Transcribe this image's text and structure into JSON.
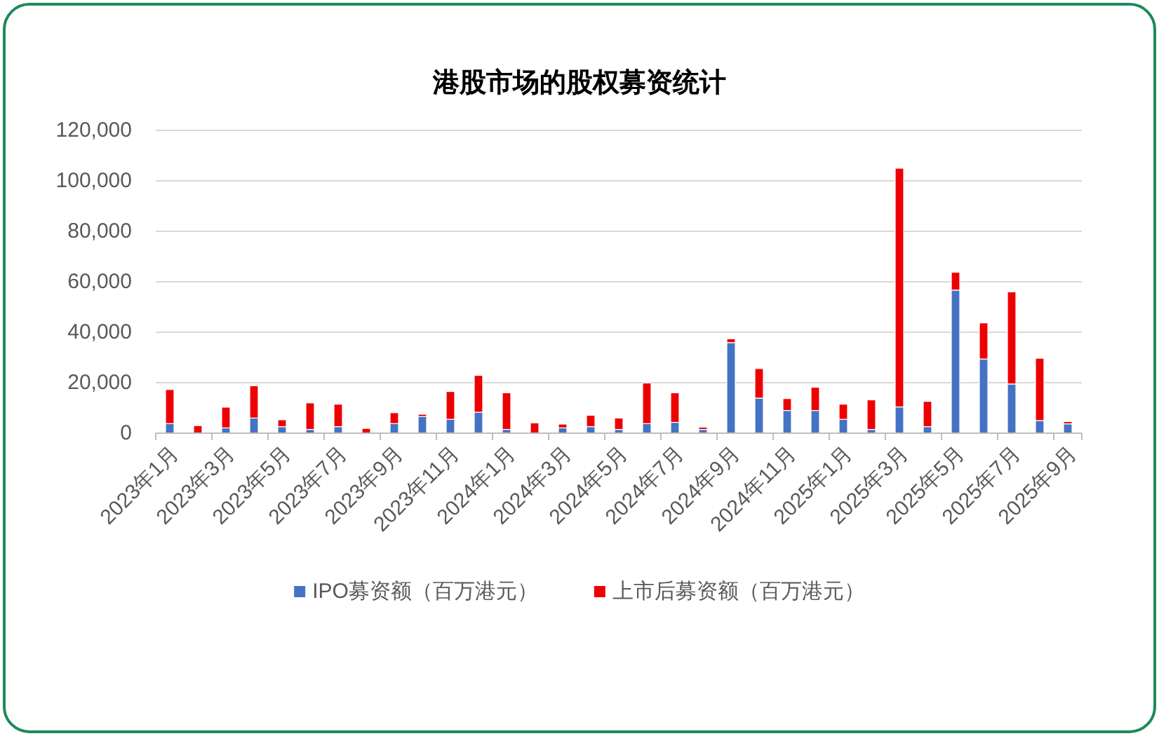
{
  "chart_data": {
    "type": "bar",
    "stacked": true,
    "title": "港股市场的股权募资统计",
    "categories": [
      "2023年1月",
      null,
      "2023年3月",
      null,
      "2023年5月",
      null,
      "2023年7月",
      null,
      "2023年9月",
      null,
      "2023年11月",
      null,
      "2024年1月",
      null,
      "2024年3月",
      null,
      "2024年5月",
      null,
      "2024年7月",
      null,
      "2024年9月",
      null,
      "2024年11月",
      null,
      "2025年1月",
      null,
      "2025年3月",
      null,
      "2025年5月",
      null,
      "2025年7月",
      null,
      "2025年9月"
    ],
    "series": [
      {
        "name": "IPO募资额（百万港元）",
        "color": "#4472c4",
        "values": [
          3800,
          0,
          2100,
          6000,
          2600,
          1500,
          2600,
          0,
          3800,
          6600,
          5500,
          8300,
          1500,
          0,
          2100,
          2600,
          1500,
          3800,
          4300,
          1500,
          35900,
          13900,
          9000,
          9000,
          5500,
          1500,
          10400,
          2600,
          56700,
          29400,
          19500,
          5000,
          3700
        ]
      },
      {
        "name": "上市后募资额（百万港元）",
        "color": "#ee0000",
        "values": [
          13500,
          3000,
          8200,
          12800,
          2700,
          10500,
          8900,
          1900,
          4300,
          900,
          11000,
          14600,
          14500,
          4100,
          1500,
          4500,
          4500,
          16100,
          11700,
          900,
          1500,
          11700,
          4700,
          9200,
          6000,
          11700,
          94600,
          10000,
          7100,
          14300,
          36500,
          24700,
          900
        ]
      }
    ],
    "ylim": [
      0,
      120000
    ],
    "yticks": [
      0,
      {
        "value": 20000,
        "label": "20,000"
      },
      {
        "value": 40000,
        "label": "40,000"
      },
      {
        "value": 60000,
        "label": "60,000"
      },
      {
        "value": 80000,
        "label": "80,000"
      },
      {
        "value": 100000,
        "label": "100,000"
      },
      {
        "value": 120000,
        "label": "120,000"
      }
    ],
    "grid": "y",
    "legend": "bottom"
  }
}
